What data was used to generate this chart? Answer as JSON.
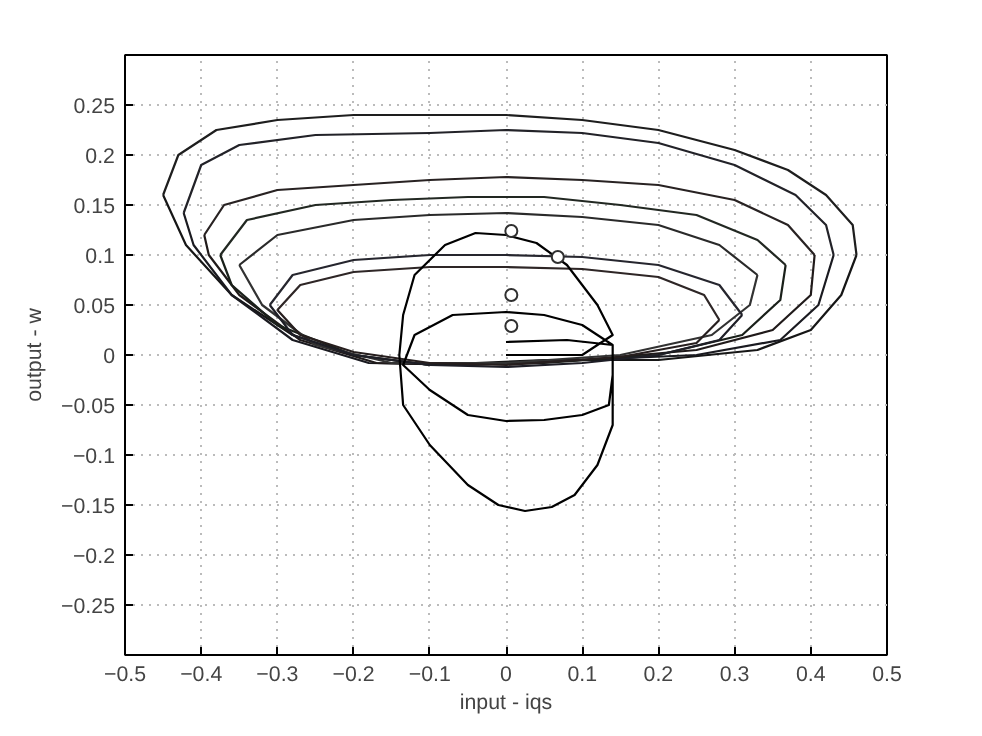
{
  "chart_data": {
    "type": "line",
    "xlabel": "input - iqs",
    "ylabel": "output - w",
    "xlim": [
      -0.5,
      0.5
    ],
    "ylim": [
      -0.3,
      0.3
    ],
    "xticks": [
      -0.5,
      -0.4,
      -0.3,
      -0.2,
      -0.1,
      0,
      0.1,
      0.2,
      0.3,
      0.4,
      0.5
    ],
    "yticks": [
      -0.25,
      -0.2,
      -0.15,
      -0.1,
      -0.05,
      0,
      0.05,
      0.1,
      0.15,
      0.2,
      0.25
    ],
    "grid": true,
    "marker": "none",
    "line_style": "solid",
    "series": [
      {
        "color": "#1e1e1e",
        "x": [
          -0.45,
          -0.43,
          -0.38,
          -0.3,
          -0.2,
          -0.1,
          0,
          0.1,
          0.2,
          0.3,
          0.37,
          0.42,
          0.455,
          0.46
        ],
        "values": [
          0.16,
          0.2,
          0.225,
          0.235,
          0.24,
          0.24,
          0.24,
          0.235,
          0.225,
          0.205,
          0.185,
          0.16,
          0.13,
          0.1
        ]
      },
      {
        "color": "#161616",
        "x": [
          -0.45,
          -0.42,
          -0.36,
          -0.28,
          -0.2,
          -0.1,
          0.05,
          0.2,
          0.33,
          0.4,
          0.44,
          0.46
        ],
        "values": [
          0.16,
          0.11,
          0.06,
          0.02,
          0.0,
          -0.01,
          -0.005,
          -0.005,
          0.005,
          0.025,
          0.06,
          0.1
        ]
      },
      {
        "color": "#222228",
        "x": [
          -0.423,
          -0.4,
          -0.35,
          -0.25,
          -0.1,
          0,
          0.1,
          0.2,
          0.3,
          0.38,
          0.42,
          0.43
        ],
        "values": [
          0.142,
          0.19,
          0.21,
          0.22,
          0.222,
          0.225,
          0.222,
          0.212,
          0.19,
          0.16,
          0.13,
          0.1
        ]
      },
      {
        "color": "#1a1a20",
        "x": [
          -0.423,
          -0.41,
          -0.36,
          -0.28,
          -0.18,
          -0.05,
          0.1,
          0.25,
          0.36,
          0.41,
          0.43
        ],
        "values": [
          0.142,
          0.11,
          0.06,
          0.015,
          -0.008,
          -0.01,
          -0.005,
          0.0,
          0.015,
          0.05,
          0.1
        ]
      },
      {
        "color": "#282222",
        "x": [
          -0.396,
          -0.37,
          -0.3,
          -0.2,
          -0.1,
          0,
          0.1,
          0.2,
          0.3,
          0.37,
          0.405
        ],
        "values": [
          0.12,
          0.15,
          0.165,
          0.17,
          0.175,
          0.178,
          0.175,
          0.17,
          0.155,
          0.13,
          0.1
        ]
      },
      {
        "color": "#201a1a",
        "x": [
          -0.396,
          -0.39,
          -0.35,
          -0.27,
          -0.17,
          -0.05,
          0.1,
          0.25,
          0.35,
          0.4,
          0.405
        ],
        "values": [
          0.12,
          0.1,
          0.06,
          0.015,
          -0.008,
          -0.01,
          -0.005,
          0.005,
          0.025,
          0.06,
          0.1
        ]
      },
      {
        "color": "#222822",
        "x": [
          -0.375,
          -0.34,
          -0.25,
          -0.15,
          -0.05,
          0.05,
          0.15,
          0.25,
          0.33,
          0.367
        ],
        "values": [
          0.1,
          0.135,
          0.15,
          0.155,
          0.158,
          0.158,
          0.15,
          0.14,
          0.115,
          0.09
        ]
      },
      {
        "color": "#1a201a",
        "x": [
          -0.375,
          -0.36,
          -0.3,
          -0.2,
          -0.1,
          0.05,
          0.2,
          0.31,
          0.36,
          0.367
        ],
        "values": [
          0.1,
          0.07,
          0.03,
          0.0,
          -0.01,
          -0.008,
          0.0,
          0.02,
          0.055,
          0.09
        ]
      },
      {
        "color": "#2a2a2a",
        "x": [
          -0.35,
          -0.3,
          -0.2,
          -0.1,
          0,
          0.1,
          0.2,
          0.28,
          0.33
        ],
        "values": [
          0.09,
          0.12,
          0.135,
          0.14,
          0.142,
          0.138,
          0.13,
          0.11,
          0.08
        ]
      },
      {
        "color": "#323232",
        "x": [
          -0.35,
          -0.32,
          -0.25,
          -0.15,
          0.0,
          0.15,
          0.27,
          0.32,
          0.33
        ],
        "values": [
          0.09,
          0.05,
          0.01,
          -0.008,
          -0.008,
          0.0,
          0.02,
          0.05,
          0.08
        ]
      },
      {
        "color": "#26262e",
        "x": [
          -0.31,
          -0.28,
          -0.2,
          -0.1,
          0,
          0.1,
          0.2,
          0.28,
          0.31
        ],
        "values": [
          0.05,
          0.08,
          0.095,
          0.1,
          0.1,
          0.098,
          0.09,
          0.07,
          0.04
        ]
      },
      {
        "color": "#1e1e26",
        "x": [
          -0.31,
          -0.28,
          -0.2,
          -0.1,
          0.0,
          0.1,
          0.2,
          0.28,
          0.31
        ],
        "values": [
          0.05,
          0.02,
          0.0,
          -0.01,
          -0.012,
          -0.008,
          0.0,
          0.015,
          0.04
        ]
      },
      {
        "color": "#2e2626",
        "x": [
          -0.3,
          -0.27,
          -0.2,
          -0.1,
          0,
          0.1,
          0.2,
          0.26,
          0.28
        ],
        "values": [
          0.045,
          0.07,
          0.083,
          0.088,
          0.088,
          0.086,
          0.078,
          0.06,
          0.035
        ]
      },
      {
        "color": "#261e1e",
        "x": [
          -0.3,
          -0.27,
          -0.2,
          -0.1,
          0.0,
          0.15,
          0.25,
          0.28
        ],
        "values": [
          0.045,
          0.02,
          0.003,
          -0.008,
          -0.01,
          -0.002,
          0.012,
          0.035
        ]
      },
      {
        "color": "#000000",
        "x": [
          0.0,
          0.08,
          0.14,
          0.14,
          0.135,
          0.1,
          0.05,
          0.0,
          -0.05,
          -0.1,
          -0.135,
          -0.12,
          -0.07,
          0.0,
          0.05,
          0.1,
          0.14,
          0.14,
          0.14,
          0.12,
          0.09,
          0.06,
          0.025,
          -0.01,
          -0.05,
          -0.1,
          -0.135,
          -0.14,
          -0.135,
          -0.12,
          -0.08,
          -0.04,
          0.0,
          0.04,
          0.08,
          0.12,
          0.14,
          0.1,
          0.0
        ],
        "values": [
          0.013,
          0.015,
          0.01,
          -0.02,
          -0.05,
          -0.06,
          -0.065,
          -0.066,
          -0.06,
          -0.035,
          -0.01,
          0.02,
          0.04,
          0.043,
          0.04,
          0.03,
          0.01,
          -0.03,
          -0.07,
          -0.11,
          -0.14,
          -0.152,
          -0.156,
          -0.15,
          -0.13,
          -0.09,
          -0.05,
          0.0,
          0.04,
          0.08,
          0.11,
          0.122,
          0.12,
          0.112,
          0.09,
          0.05,
          0.02,
          0.0,
          0.0
        ]
      },
      {
        "type": "scatter",
        "marker": "circle",
        "color": "#303030",
        "x": [
          0.007,
          0.007,
          0.007,
          0.068
        ],
        "values": [
          0.124,
          0.06,
          0.029,
          0.098
        ]
      }
    ]
  }
}
